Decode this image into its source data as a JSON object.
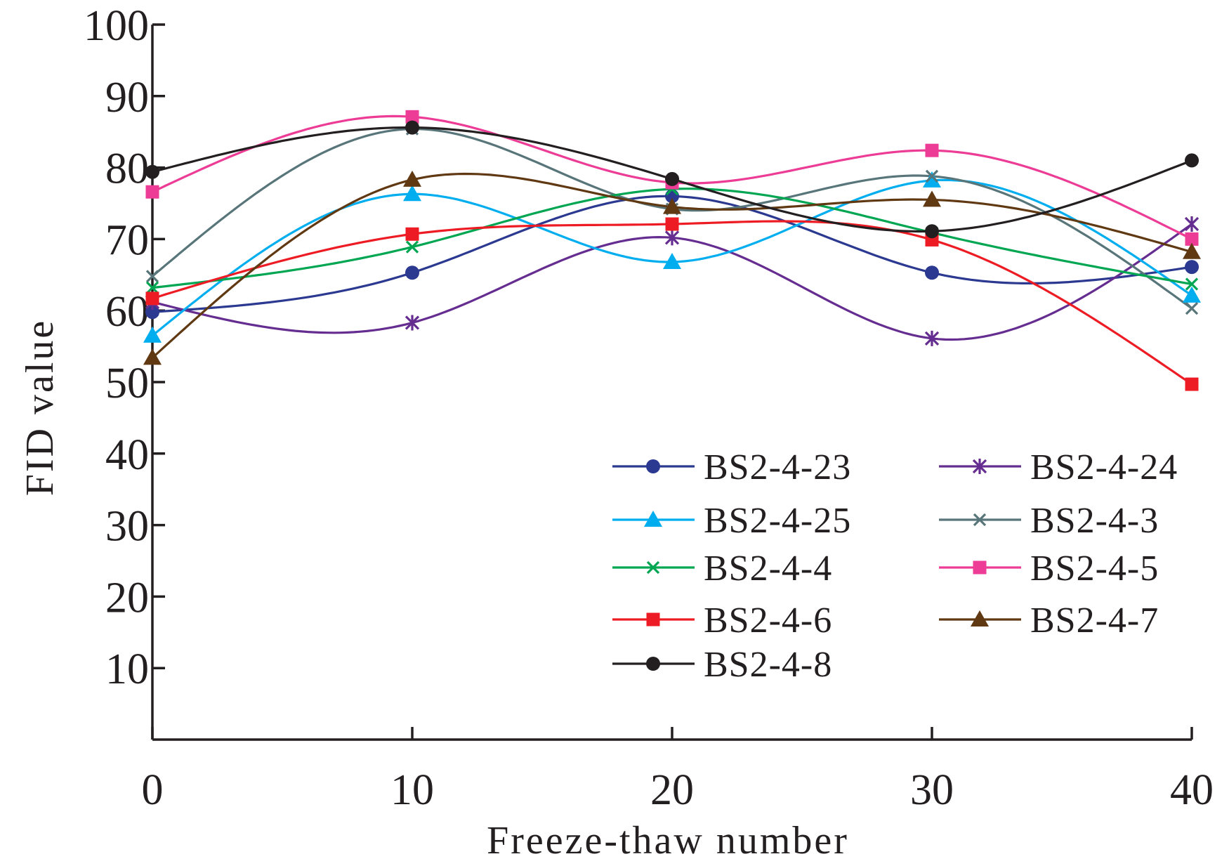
{
  "chart_data": {
    "type": "line",
    "smooth": true,
    "title": "",
    "xlabel": "Freeze-thaw number",
    "ylabel": "FID value",
    "x": [
      0,
      10,
      20,
      30,
      40
    ],
    "xlim": [
      0,
      40
    ],
    "ylim": [
      0,
      100
    ],
    "xticks": [
      0,
      10,
      20,
      30,
      40
    ],
    "yticks": [
      10,
      20,
      30,
      40,
      50,
      60,
      70,
      80,
      90,
      100
    ],
    "grid": false,
    "legend_position": "lower-right",
    "series": [
      {
        "name": "BS2-4-23",
        "color": "#2b3990",
        "marker": "circle",
        "values": [
          59.8,
          65.3,
          76.0,
          65.3,
          66.1
        ]
      },
      {
        "name": "BS2-4-24",
        "color": "#662d91",
        "marker": "asterisk",
        "values": [
          61.2,
          58.3,
          70.2,
          56.1,
          72.1
        ]
      },
      {
        "name": "BS2-4-25",
        "color": "#00aeef",
        "marker": "triangle",
        "values": [
          56.5,
          76.3,
          66.8,
          78.2,
          62.1
        ]
      },
      {
        "name": "BS2-4-3",
        "color": "#58757a",
        "marker": "x",
        "values": [
          64.8,
          85.4,
          74.2,
          78.8,
          60.3
        ]
      },
      {
        "name": "BS2-4-4",
        "color": "#00a651",
        "marker": "x",
        "values": [
          63.2,
          68.9,
          77.0,
          70.9,
          63.7
        ]
      },
      {
        "name": "BS2-4-5",
        "color": "#ec3c96",
        "marker": "square",
        "values": [
          76.6,
          87.1,
          77.9,
          82.4,
          70.0
        ]
      },
      {
        "name": "BS2-4-6",
        "color": "#ed1c24",
        "marker": "square",
        "values": [
          61.7,
          70.7,
          72.1,
          69.9,
          49.7
        ]
      },
      {
        "name": "BS2-4-7",
        "color": "#603913",
        "marker": "triangle",
        "values": [
          53.4,
          78.3,
          74.5,
          75.5,
          68.2
        ]
      },
      {
        "name": "BS2-4-8",
        "color": "#231f20",
        "marker": "circle",
        "values": [
          79.4,
          85.6,
          78.4,
          71.1,
          81.0
        ]
      }
    ]
  }
}
